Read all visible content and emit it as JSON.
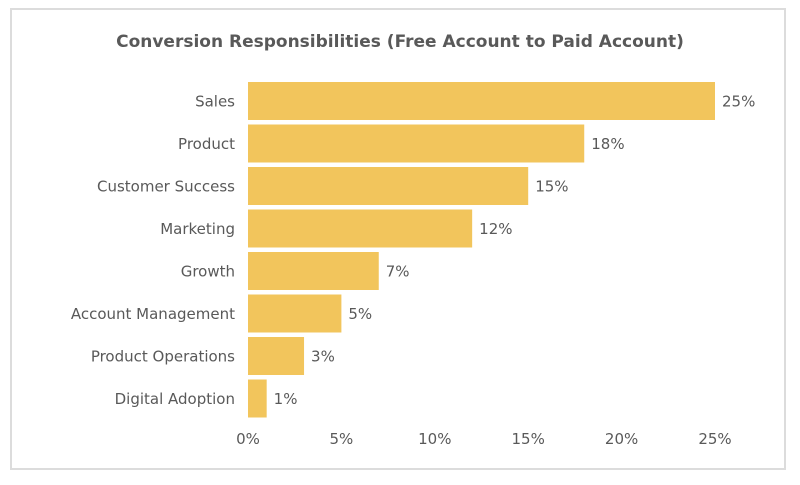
{
  "chart_data": {
    "type": "bar",
    "orientation": "horizontal",
    "title": "Conversion Responsibilities (Free Account to Paid Account)",
    "categories": [
      "Sales",
      "Product",
      "Customer Success",
      "Marketing",
      "Growth",
      "Account Management",
      "Product Operations",
      "Digital Adoption"
    ],
    "values": [
      25,
      18,
      15,
      12,
      7,
      5,
      3,
      1
    ],
    "value_labels": [
      "25%",
      "18%",
      "15%",
      "12%",
      "7%",
      "5%",
      "3%",
      "1%"
    ],
    "xlim": [
      0,
      25
    ],
    "xticks": [
      0,
      5,
      10,
      15,
      20,
      25
    ],
    "xtick_labels": [
      "0%",
      "5%",
      "10%",
      "15%",
      "20%",
      "25%"
    ],
    "xlabel": "",
    "ylabel": "",
    "grid": false,
    "bar_color": "#f2c55c"
  }
}
